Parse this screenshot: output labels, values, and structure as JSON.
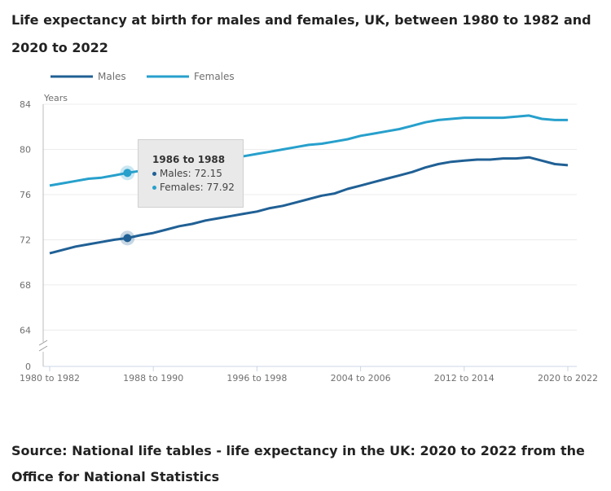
{
  "title": "Life expectancy at birth for males and females, UK, between 1980 to 1982 and 2020 to 2022",
  "source": "Source: National life tables - life expectancy in the UK: 2020 to 2022 from the Office for National Statistics",
  "chart_data": {
    "type": "line",
    "title": "Life expectancy at birth for males and females, UK, between 1980 to 1982 and 2020 to 2022",
    "ylabel": "Years",
    "xlabel": "",
    "yticks": [
      0,
      64,
      68,
      72,
      76,
      80,
      84
    ],
    "ylim": [
      0,
      84
    ],
    "axis_break": true,
    "grid": true,
    "legend_placement": "top-left",
    "xtick_labels": [
      "1980 to 1982",
      "1988 to 1990",
      "1996 to 1998",
      "2004 to 2006",
      "2012 to 2014",
      "2020 to 2022"
    ],
    "start_year": 1980,
    "period_length_label": "to",
    "categories": [
      "1980 to 1982",
      "1981 to 1983",
      "1982 to 1984",
      "1983 to 1985",
      "1984 to 1986",
      "1985 to 1987",
      "1986 to 1988",
      "1987 to 1989",
      "1988 to 1990",
      "1989 to 1991",
      "1990 to 1992",
      "1991 to 1993",
      "1992 to 1994",
      "1993 to 1995",
      "1994 to 1996",
      "1995 to 1997",
      "1996 to 1998",
      "1997 to 1999",
      "1998 to 2000",
      "1999 to 2001",
      "2000 to 2002",
      "2001 to 2003",
      "2002 to 2004",
      "2003 to 2005",
      "2004 to 2006",
      "2005 to 2007",
      "2006 to 2008",
      "2007 to 2009",
      "2008 to 2010",
      "2009 to 2011",
      "2010 to 2012",
      "2011 to 2013",
      "2012 to 2014",
      "2013 to 2015",
      "2014 to 2016",
      "2015 to 2017",
      "2016 to 2018",
      "2017 to 2019",
      "2018 to 2020",
      "2019 to 2021",
      "2020 to 2022"
    ],
    "series": [
      {
        "name": "Males",
        "color": "#206095",
        "values": [
          70.8,
          71.1,
          71.4,
          71.6,
          71.8,
          72.0,
          72.15,
          72.4,
          72.6,
          72.9,
          73.2,
          73.4,
          73.7,
          73.9,
          74.1,
          74.3,
          74.5,
          74.8,
          75.0,
          75.3,
          75.6,
          75.9,
          76.1,
          76.5,
          76.8,
          77.1,
          77.4,
          77.7,
          78.0,
          78.4,
          78.7,
          78.9,
          79.0,
          79.1,
          79.1,
          79.2,
          79.2,
          79.3,
          79.0,
          78.7,
          78.6
        ]
      },
      {
        "name": "Females",
        "color": "#27a0cc",
        "values": [
          76.8,
          77.0,
          77.2,
          77.4,
          77.5,
          77.7,
          77.92,
          78.1,
          78.3,
          78.5,
          78.7,
          78.9,
          79.0,
          79.1,
          79.3,
          79.4,
          79.6,
          79.8,
          80.0,
          80.2,
          80.4,
          80.5,
          80.7,
          80.9,
          81.2,
          81.4,
          81.6,
          81.8,
          82.1,
          82.4,
          82.6,
          82.7,
          82.8,
          82.8,
          82.8,
          82.8,
          82.9,
          83.0,
          82.7,
          82.6,
          82.6
        ]
      }
    ],
    "tooltip": {
      "title": "1986 to 1988",
      "males": "Males: 72.15",
      "females": "Females: 77.92",
      "index": 6
    }
  }
}
